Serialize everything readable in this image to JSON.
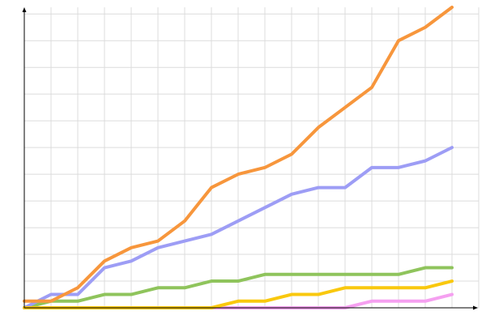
{
  "chart_data": {
    "type": "line",
    "x": [
      0,
      1,
      2,
      3,
      4,
      5,
      6,
      7,
      8,
      9,
      10,
      11,
      12,
      13,
      14,
      15,
      16
    ],
    "series": [
      {
        "color": "#f5a0f0",
        "values": [
          0,
          0,
          0,
          0,
          0,
          0,
          0,
          0,
          0,
          0,
          0,
          0,
          0,
          1,
          1,
          1,
          2
        ]
      },
      {
        "color": "#8fc45c",
        "values": [
          0,
          1,
          1,
          2,
          2,
          3,
          3,
          4,
          4,
          5,
          5,
          5,
          5,
          5,
          5,
          6,
          6
        ]
      },
      {
        "color": "#9d9df5",
        "values": [
          0,
          2,
          2,
          6,
          7,
          9,
          10,
          11,
          13,
          15,
          17,
          18,
          18,
          21,
          21,
          22,
          24
        ]
      },
      {
        "color": "#f7963c",
        "values": [
          1,
          1,
          3,
          7,
          9,
          10,
          13,
          18,
          20,
          21,
          23,
          27,
          30,
          33,
          40,
          42,
          45
        ]
      },
      {
        "color": "#f9c80e",
        "values": [
          0,
          0,
          0,
          0,
          0,
          0,
          0,
          0,
          1,
          1,
          2,
          2,
          3,
          3,
          3,
          3,
          4
        ]
      }
    ],
    "xlim": [
      0,
      17
    ],
    "xticks": [
      0,
      1,
      2,
      3,
      4,
      5,
      6,
      7,
      8,
      9,
      10,
      11,
      12,
      13,
      14,
      15,
      16,
      17
    ],
    "ylim": [
      0,
      45
    ],
    "yticks": [
      0,
      4,
      8,
      12,
      16,
      20,
      24,
      28,
      32,
      36,
      40,
      44
    ],
    "grid": true
  }
}
